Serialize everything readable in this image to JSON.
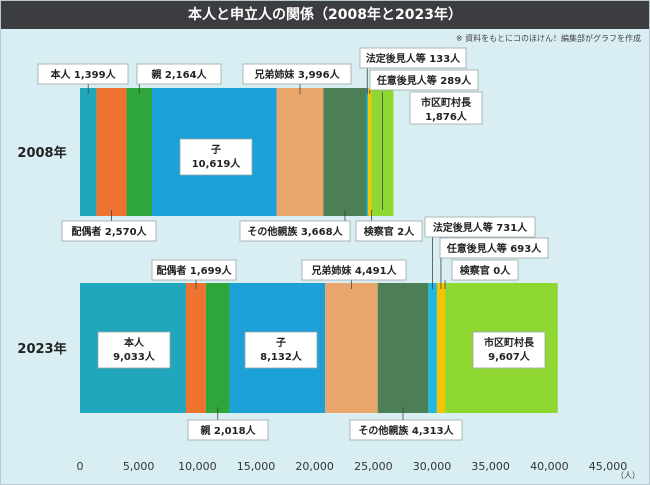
{
  "header": {
    "title": "本人と申立人の関係（2008年と2023年）",
    "note": "※ 資料をもとにコのほけん！編集部がグラフを作成"
  },
  "chart_data": {
    "type": "bar",
    "orientation": "horizontal",
    "stacked": true,
    "title": "本人と申立人の関係（2008年と2023年）",
    "unit": "（人）",
    "xlim": [
      0,
      45000
    ],
    "ticks": [
      "0",
      "5,000",
      "10,000",
      "15,000",
      "20,000",
      "25,000",
      "30,000",
      "35,000",
      "40,000",
      "45,000"
    ],
    "tick_values": [
      0,
      5000,
      10000,
      15000,
      20000,
      25000,
      30000,
      35000,
      40000,
      45000
    ],
    "categories": [
      "2008年",
      "2023年"
    ],
    "series": [
      {
        "name": "本人",
        "color": "#22a6bc",
        "values": [
          1399,
          9033
        ]
      },
      {
        "name": "配偶者",
        "color": "#ef7330",
        "values": [
          2570,
          1699
        ]
      },
      {
        "name": "親",
        "color": "#2ea63a",
        "values": [
          2164,
          2018
        ]
      },
      {
        "name": "子",
        "color": "#1ba0d8",
        "values": [
          10619,
          8132
        ]
      },
      {
        "name": "兄弟姉妹",
        "color": "#eaa66a",
        "values": [
          3996,
          4491
        ]
      },
      {
        "name": "その他親族",
        "color": "#4c7f55",
        "values": [
          3668,
          4313
        ]
      },
      {
        "name": "法定後見人等",
        "color": "#20b7e3",
        "values": [
          133,
          731
        ]
      },
      {
        "name": "任意後見人等",
        "color": "#f5c400",
        "values": [
          289,
          693
        ]
      },
      {
        "name": "検察官",
        "color": "#9aa08f",
        "values": [
          2,
          0
        ]
      },
      {
        "name": "市区町村長",
        "color": "#8fd832",
        "values": [
          1876,
          9607
        ]
      }
    ],
    "labels": [
      [
        {
          "name": "本人",
          "value": "1,399"
        },
        {
          "name": "配偶者",
          "value": "2,570"
        },
        {
          "name": "親",
          "value": "2,164"
        },
        {
          "name": "子",
          "value": "10,619"
        },
        {
          "name": "兄弟姉妹",
          "value": "3,996"
        },
        {
          "name": "その他親族",
          "value": "3,668"
        },
        {
          "name": "法定後見人等",
          "value": "133"
        },
        {
          "name": "任意後見人等",
          "value": "289"
        },
        {
          "name": "検察官",
          "value": "2"
        },
        {
          "name": "市区町村長",
          "value": "1,876"
        }
      ],
      [
        {
          "name": "本人",
          "value": "9,033"
        },
        {
          "name": "配偶者",
          "value": "1,699"
        },
        {
          "name": "親",
          "value": "2,018"
        },
        {
          "name": "子",
          "value": "8,132"
        },
        {
          "name": "兄弟姉妹",
          "value": "4,491"
        },
        {
          "name": "その他親族",
          "value": "4,313"
        },
        {
          "name": "法定後見人等",
          "value": "731"
        },
        {
          "name": "任意後見人等",
          "value": "693"
        },
        {
          "name": "検察官",
          "value": "0"
        },
        {
          "name": "市区町村長",
          "value": "9,607"
        }
      ]
    ],
    "value_suffix": "人",
    "grid": false,
    "legend": "none"
  }
}
